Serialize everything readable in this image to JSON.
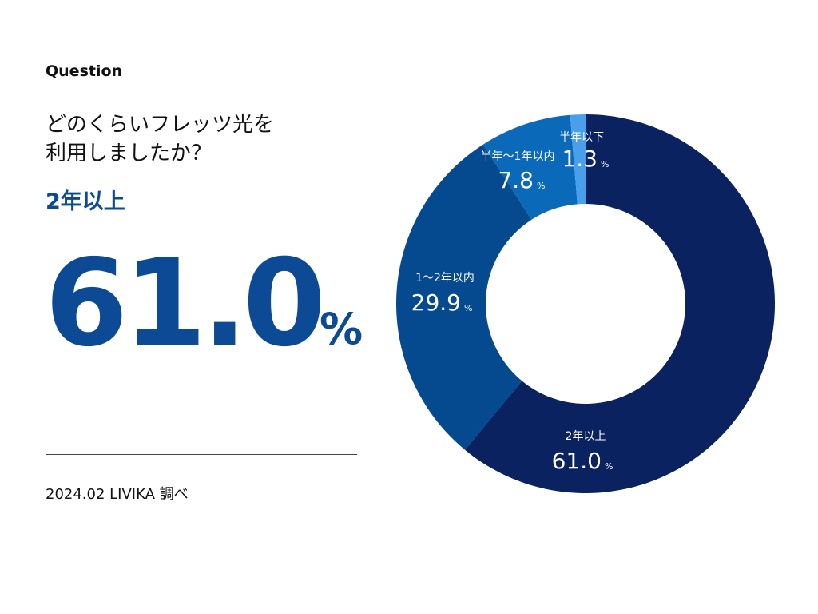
{
  "question_label": "Question",
  "question": [
    "どのくらいフレッツ光を",
    "利用しましたか？"
  ],
  "source": "2024.02 LIVIKA 調べ",
  "chart_data": {
    "type": "donut",
    "categories": [
      "2年以上",
      "1～2年以内",
      "半年～1年以内",
      "半年以下"
    ],
    "values": [
      61.0,
      29.9,
      7.8,
      1.3
    ],
    "value_labels": [
      "61.0",
      "29.9",
      "7.8",
      "1.3"
    ],
    "unit": "%",
    "colors": [
      "#0b2260",
      "#054a8e",
      "#0a69b9",
      "#4a9fea"
    ]
  }
}
